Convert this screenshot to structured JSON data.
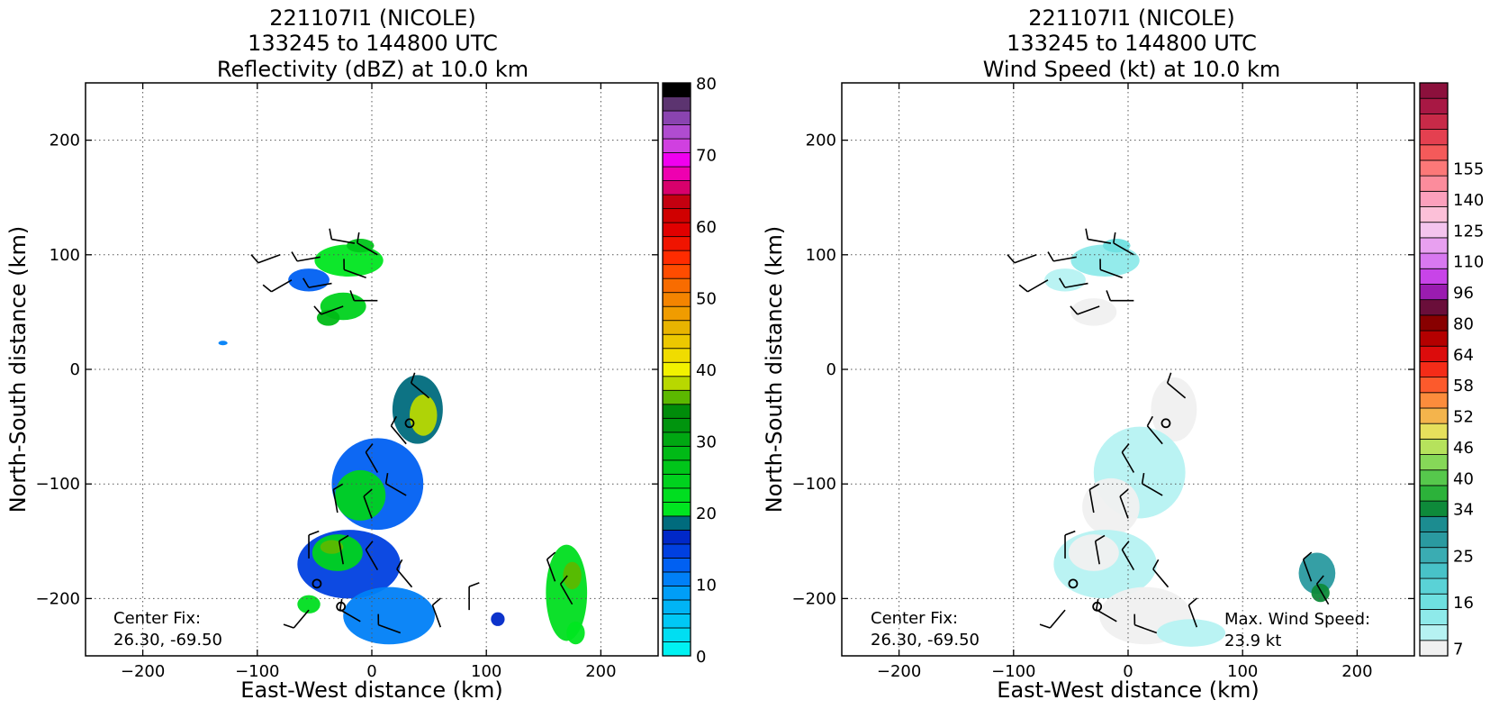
{
  "chart_data": [
    {
      "type": "heatmap",
      "title": "221107I1 (NICOLE)",
      "subtitle": "133245 to 144800 UTC",
      "variable_title": "Reflectivity (dBZ) at 10.0 km",
      "xlabel": "East-West distance (km)",
      "ylabel": "North-South distance (km)",
      "xlim": [
        -250,
        250
      ],
      "ylim": [
        -250,
        250
      ],
      "xticks": [
        -200,
        -100,
        0,
        100,
        200
      ],
      "yticks": [
        -200,
        -100,
        0,
        100,
        200
      ],
      "xtick_labels": [
        "−200",
        "−100",
        "0",
        "100",
        "200"
      ],
      "ytick_labels": [
        "−200",
        "−100",
        "0",
        "100",
        "200"
      ],
      "grid": true,
      "annotation": {
        "line1": "Center Fix:",
        "line2": "26.30, -69.50"
      },
      "center_marks": [
        [
          33,
          -47
        ],
        [
          -48,
          -187
        ],
        [
          -27,
          -207
        ]
      ],
      "colorbar": {
        "min": 0,
        "max": 80,
        "tick_values": [
          0,
          10,
          20,
          30,
          40,
          50,
          60,
          70,
          80
        ],
        "tick_labels": [
          "0",
          "10",
          "20",
          "30",
          "40",
          "50",
          "60",
          "70",
          "80"
        ],
        "colors": [
          "#00f2f2",
          "#00def2",
          "#00c8f5",
          "#00b4f5",
          "#009ef7",
          "#0080f7",
          "#0060f2",
          "#0040e0",
          "#0028c8",
          "#006b7d",
          "#00e620",
          "#00de20",
          "#00d21e",
          "#00c61a",
          "#00ba16",
          "#00a812",
          "#00940e",
          "#008c0a",
          "#5cb800",
          "#b8d800",
          "#f2f200",
          "#f0dc00",
          "#ecc800",
          "#e8b400",
          "#f09c00",
          "#f48400",
          "#f86c00",
          "#ff4c00",
          "#ff2c00",
          "#f01400",
          "#e00000",
          "#d00000",
          "#c40010",
          "#d8006c",
          "#ee00b0",
          "#f000f0",
          "#d040e0",
          "#b04cd0",
          "#8a44b0",
          "#5c3470",
          "#000000"
        ]
      },
      "regions": [
        {
          "center": [
            -20,
            95
          ],
          "radius": [
            30,
            14
          ],
          "level": 10
        },
        {
          "center": [
            -55,
            78
          ],
          "radius": [
            18,
            10
          ],
          "level": 6
        },
        {
          "center": [
            -25,
            55
          ],
          "radius": [
            20,
            12
          ],
          "level": 12
        },
        {
          "center": [
            -38,
            45
          ],
          "radius": [
            10,
            7
          ],
          "level": 14
        },
        {
          "center": [
            -10,
            108
          ],
          "radius": [
            12,
            6
          ],
          "level": 13
        },
        {
          "center": [
            -130,
            23
          ],
          "radius": [
            4,
            2
          ],
          "level": 5
        },
        {
          "center": [
            40,
            -35
          ],
          "radius": [
            22,
            30
          ],
          "level": 9
        },
        {
          "center": [
            45,
            -40
          ],
          "radius": [
            12,
            18
          ],
          "level": 19
        },
        {
          "center": [
            5,
            -100
          ],
          "radius": [
            40,
            40
          ],
          "level": 6
        },
        {
          "center": [
            -10,
            -110
          ],
          "radius": [
            22,
            22
          ],
          "level": 12
        },
        {
          "center": [
            -20,
            -170
          ],
          "radius": [
            45,
            30
          ],
          "level": 7
        },
        {
          "center": [
            -30,
            -160
          ],
          "radius": [
            22,
            16
          ],
          "level": 12
        },
        {
          "center": [
            -35,
            -155
          ],
          "radius": [
            10,
            6
          ],
          "level": 18
        },
        {
          "center": [
            15,
            -215
          ],
          "radius": [
            40,
            25
          ],
          "level": 5
        },
        {
          "center": [
            -55,
            -205
          ],
          "radius": [
            10,
            8
          ],
          "level": 11
        },
        {
          "center": [
            110,
            -218
          ],
          "radius": [
            6,
            6
          ],
          "level": 8
        },
        {
          "center": [
            170,
            -195
          ],
          "radius": [
            18,
            42
          ],
          "level": 11
        },
        {
          "center": [
            175,
            -180
          ],
          "radius": [
            8,
            12
          ],
          "level": 18
        },
        {
          "center": [
            178,
            -230
          ],
          "radius": [
            8,
            10
          ],
          "level": 10
        }
      ],
      "barbs": [
        {
          "x": -80,
          "y": 100,
          "dir": 250,
          "kt": 10
        },
        {
          "x": -45,
          "y": 98,
          "dir": 260,
          "kt": 10
        },
        {
          "x": -15,
          "y": 110,
          "dir": 280,
          "kt": 10
        },
        {
          "x": 5,
          "y": 100,
          "dir": 300,
          "kt": 10
        },
        {
          "x": -70,
          "y": 78,
          "dir": 240,
          "kt": 10
        },
        {
          "x": -35,
          "y": 75,
          "dir": 260,
          "kt": 10
        },
        {
          "x": -5,
          "y": 80,
          "dir": 290,
          "kt": 10
        },
        {
          "x": -25,
          "y": 55,
          "dir": 250,
          "kt": 10
        },
        {
          "x": 5,
          "y": 60,
          "dir": 270,
          "kt": 10
        },
        {
          "x": 50,
          "y": -25,
          "dir": 310,
          "kt": 10
        },
        {
          "x": 30,
          "y": -65,
          "dir": 320,
          "kt": 10
        },
        {
          "x": 5,
          "y": -90,
          "dir": 330,
          "kt": 10
        },
        {
          "x": -30,
          "y": -125,
          "dir": 350,
          "kt": 10
        },
        {
          "x": 0,
          "y": -130,
          "dir": 340,
          "kt": 10
        },
        {
          "x": 30,
          "y": -110,
          "dir": 300,
          "kt": 10
        },
        {
          "x": -55,
          "y": -165,
          "dir": 0,
          "kt": 10
        },
        {
          "x": -25,
          "y": -170,
          "dir": 350,
          "kt": 10
        },
        {
          "x": 5,
          "y": -175,
          "dir": 330,
          "kt": 10
        },
        {
          "x": 35,
          "y": -190,
          "dir": 320,
          "kt": 10
        },
        {
          "x": -55,
          "y": -210,
          "dir": 220,
          "kt": 10
        },
        {
          "x": -10,
          "y": -220,
          "dir": 300,
          "kt": 10
        },
        {
          "x": 25,
          "y": -230,
          "dir": 290,
          "kt": 10
        },
        {
          "x": 60,
          "y": -225,
          "dir": 340,
          "kt": 10
        },
        {
          "x": 85,
          "y": -210,
          "dir": 0,
          "kt": 10
        },
        {
          "x": 160,
          "y": -185,
          "dir": 340,
          "kt": 10
        },
        {
          "x": 175,
          "y": -205,
          "dir": 330,
          "kt": 10
        }
      ]
    },
    {
      "type": "heatmap",
      "title": "221107I1 (NICOLE)",
      "subtitle": "133245 to 144800 UTC",
      "variable_title": "Wind Speed (kt) at 10.0 km",
      "xlabel": "East-West distance (km)",
      "ylabel": "North-South distance (km)",
      "xlim": [
        -250,
        250
      ],
      "ylim": [
        -250,
        250
      ],
      "xticks": [
        -200,
        -100,
        0,
        100,
        200
      ],
      "yticks": [
        -200,
        -100,
        0,
        100,
        200
      ],
      "xtick_labels": [
        "−200",
        "−100",
        "0",
        "100",
        "200"
      ],
      "ytick_labels": [
        "−200",
        "−100",
        "0",
        "100",
        "200"
      ],
      "grid": true,
      "annotation": {
        "line1": "Center Fix:",
        "line2": "26.30, -69.50"
      },
      "annotation2": {
        "line1": "Max. Wind Speed:",
        "line2": "23.9 kt"
      },
      "center_marks": [
        [
          33,
          -47
        ],
        [
          -48,
          -187
        ],
        [
          -27,
          -207
        ]
      ],
      "colorbar": {
        "tick_labels": [
          "7",
          "16",
          "25",
          "34",
          "40",
          "46",
          "52",
          "58",
          "64",
          "80",
          "96",
          "110",
          "125",
          "140",
          "155"
        ],
        "tick_indices": [
          0,
          3,
          6,
          9,
          11,
          13,
          15,
          17,
          19,
          21,
          23,
          25,
          27,
          29,
          31
        ],
        "colors": [
          "#f0f0f0",
          "#b6f2f2",
          "#8eeaea",
          "#6ee0e0",
          "#5ad2d6",
          "#48c2c8",
          "#3aacb2",
          "#2a9aa0",
          "#1c8c90",
          "#0e8a3a",
          "#2cb23a",
          "#56c84c",
          "#86d858",
          "#b6e25c",
          "#e6e05c",
          "#f4b44c",
          "#fc8c3c",
          "#fc5a2c",
          "#f42c18",
          "#dc0c0c",
          "#b40000",
          "#880000",
          "#6a0e3a",
          "#9a1cb0",
          "#c844e8",
          "#d878f0",
          "#e8a0f0",
          "#f4c4ee",
          "#fcc0d8",
          "#fca0bc",
          "#fc8c9c",
          "#fc7878",
          "#f45a5a",
          "#e44050",
          "#c82a48",
          "#a81844",
          "#8c103c"
        ]
      },
      "regions": [
        {
          "center": [
            -20,
            95
          ],
          "radius": [
            30,
            14
          ],
          "level": 2
        },
        {
          "center": [
            -55,
            78
          ],
          "radius": [
            18,
            10
          ],
          "level": 1
        },
        {
          "center": [
            -30,
            50
          ],
          "radius": [
            20,
            12
          ],
          "level": 0
        },
        {
          "center": [
            -10,
            108
          ],
          "radius": [
            12,
            6
          ],
          "level": 3
        },
        {
          "center": [
            40,
            -35
          ],
          "radius": [
            20,
            28
          ],
          "level": 0
        },
        {
          "center": [
            10,
            -90
          ],
          "radius": [
            40,
            40
          ],
          "level": 1
        },
        {
          "center": [
            -15,
            -120
          ],
          "radius": [
            25,
            25
          ],
          "level": 0
        },
        {
          "center": [
            -20,
            -170
          ],
          "radius": [
            45,
            30
          ],
          "level": 1
        },
        {
          "center": [
            -30,
            -160
          ],
          "radius": [
            22,
            16
          ],
          "level": 0
        },
        {
          "center": [
            15,
            -215
          ],
          "radius": [
            40,
            25
          ],
          "level": 0
        },
        {
          "center": [
            55,
            -230
          ],
          "radius": [
            30,
            12
          ],
          "level": 1
        },
        {
          "center": [
            165,
            -178
          ],
          "radius": [
            16,
            18
          ],
          "level": 7
        },
        {
          "center": [
            168,
            -195
          ],
          "radius": [
            8,
            8
          ],
          "level": 9
        }
      ],
      "barbs": [
        {
          "x": -80,
          "y": 100,
          "dir": 250,
          "kt": 10
        },
        {
          "x": -45,
          "y": 98,
          "dir": 260,
          "kt": 10
        },
        {
          "x": -15,
          "y": 110,
          "dir": 280,
          "kt": 10
        },
        {
          "x": 5,
          "y": 100,
          "dir": 300,
          "kt": 10
        },
        {
          "x": -70,
          "y": 78,
          "dir": 240,
          "kt": 10
        },
        {
          "x": -35,
          "y": 75,
          "dir": 260,
          "kt": 10
        },
        {
          "x": -5,
          "y": 80,
          "dir": 290,
          "kt": 10
        },
        {
          "x": -25,
          "y": 55,
          "dir": 250,
          "kt": 10
        },
        {
          "x": 5,
          "y": 60,
          "dir": 270,
          "kt": 10
        },
        {
          "x": 50,
          "y": -25,
          "dir": 310,
          "kt": 10
        },
        {
          "x": 30,
          "y": -65,
          "dir": 320,
          "kt": 10
        },
        {
          "x": 5,
          "y": -90,
          "dir": 330,
          "kt": 10
        },
        {
          "x": -30,
          "y": -125,
          "dir": 350,
          "kt": 10
        },
        {
          "x": 0,
          "y": -130,
          "dir": 340,
          "kt": 10
        },
        {
          "x": 30,
          "y": -110,
          "dir": 300,
          "kt": 10
        },
        {
          "x": -55,
          "y": -165,
          "dir": 0,
          "kt": 10
        },
        {
          "x": -25,
          "y": -170,
          "dir": 350,
          "kt": 10
        },
        {
          "x": 5,
          "y": -175,
          "dir": 330,
          "kt": 10
        },
        {
          "x": 35,
          "y": -190,
          "dir": 320,
          "kt": 10
        },
        {
          "x": -55,
          "y": -210,
          "dir": 220,
          "kt": 10
        },
        {
          "x": -10,
          "y": -220,
          "dir": 300,
          "kt": 10
        },
        {
          "x": 25,
          "y": -230,
          "dir": 290,
          "kt": 10
        },
        {
          "x": 60,
          "y": -225,
          "dir": 340,
          "kt": 10
        },
        {
          "x": 160,
          "y": -185,
          "dir": 340,
          "kt": 10
        },
        {
          "x": 175,
          "y": -205,
          "dir": 330,
          "kt": 10
        }
      ]
    }
  ]
}
